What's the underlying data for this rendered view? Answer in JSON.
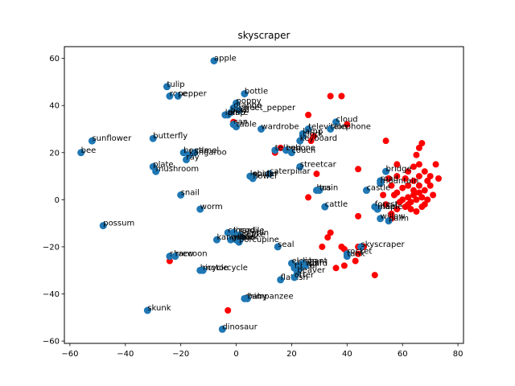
{
  "chart_data": {
    "type": "scatter",
    "title": "skyscraper",
    "xlabel": "",
    "ylabel": "",
    "xlim": [
      -62,
      82
    ],
    "ylim": [
      -61,
      65
    ],
    "xticks": [
      -60,
      -40,
      -20,
      0,
      20,
      40,
      60,
      80
    ],
    "yticks": [
      -60,
      -40,
      -20,
      0,
      20,
      40,
      60
    ],
    "grid": false,
    "colors": {
      "labeled": "#1f77b4",
      "unlabeled": "#ff0000"
    },
    "labeled_points": [
      {
        "label": "apple",
        "x": -8,
        "y": 59
      },
      {
        "label": "tulip",
        "x": -25,
        "y": 48
      },
      {
        "label": "rose",
        "x": -24,
        "y": 44
      },
      {
        "label": "pepper",
        "x": -21,
        "y": 44
      },
      {
        "label": "bottle",
        "x": 3,
        "y": 45
      },
      {
        "label": "poppy",
        "x": 0,
        "y": 41
      },
      {
        "label": "orange",
        "x": -1,
        "y": 39
      },
      {
        "label": "sweet_pepper",
        "x": 1,
        "y": 38
      },
      {
        "label": "bowl",
        "x": -2,
        "y": 37
      },
      {
        "label": "plate",
        "x": -3,
        "y": 36
      },
      {
        "label": "lamp",
        "x": -4,
        "y": 36
      },
      {
        "label": "can",
        "x": -1,
        "y": 32
      },
      {
        "label": "table",
        "x": 0,
        "y": 31
      },
      {
        "label": "wardrobe",
        "x": 9,
        "y": 30
      },
      {
        "label": "cloud",
        "x": 36,
        "y": 33
      },
      {
        "label": "television",
        "x": 26,
        "y": 30
      },
      {
        "label": "telephone",
        "x": 34,
        "y": 30
      },
      {
        "label": "lamp",
        "x": 24,
        "y": 28
      },
      {
        "label": "clock",
        "x": 24,
        "y": 27
      },
      {
        "label": "keyboard",
        "x": 23,
        "y": 25
      },
      {
        "label": "telephone",
        "x": 14,
        "y": 21
      },
      {
        "label": "bed",
        "x": 18,
        "y": 21
      },
      {
        "label": "couch",
        "x": 20,
        "y": 20
      },
      {
        "label": "sunflower",
        "x": -52,
        "y": 25
      },
      {
        "label": "butterfly",
        "x": -30,
        "y": 26
      },
      {
        "label": "bee",
        "x": -56,
        "y": 20
      },
      {
        "label": "beetle",
        "x": -19,
        "y": 20
      },
      {
        "label": "camel",
        "x": -15,
        "y": 20
      },
      {
        "label": "kangaroo",
        "x": -17,
        "y": 19
      },
      {
        "label": "ray",
        "x": -18,
        "y": 17
      },
      {
        "label": "plate",
        "x": -30,
        "y": 14
      },
      {
        "label": "mushroom",
        "x": -29,
        "y": 12
      },
      {
        "label": "streetcar",
        "x": 23,
        "y": 14
      },
      {
        "label": "caterpillar",
        "x": 12,
        "y": 11
      },
      {
        "label": "spider",
        "x": 6,
        "y": 10
      },
      {
        "label": "lobster",
        "x": 5,
        "y": 10
      },
      {
        "label": "flower",
        "x": 6,
        "y": 9
      },
      {
        "label": "snail",
        "x": -20,
        "y": 2
      },
      {
        "label": "bus",
        "x": 29,
        "y": 4
      },
      {
        "label": "train",
        "x": 30,
        "y": 4
      },
      {
        "label": "cattle",
        "x": 32,
        "y": -3
      },
      {
        "label": "worm",
        "x": -13,
        "y": -4
      },
      {
        "label": "bridge",
        "x": 54,
        "y": 12
      },
      {
        "label": "road",
        "x": 52,
        "y": 8
      },
      {
        "label": "mountain",
        "x": 52,
        "y": 7
      },
      {
        "label": "castle",
        "x": 47,
        "y": 4
      },
      {
        "label": "forest",
        "x": 50,
        "y": -3
      },
      {
        "label": "plain",
        "x": 51,
        "y": -4
      },
      {
        "label": "maple",
        "x": 51,
        "y": -4
      },
      {
        "label": "willow",
        "x": 52,
        "y": -8
      },
      {
        "label": "palm",
        "x": 55,
        "y": -9
      },
      {
        "label": "possum",
        "x": -48,
        "y": -11
      },
      {
        "label": "crocodile",
        "x": -3,
        "y": -14
      },
      {
        "label": "lizard",
        "x": -1,
        "y": -14
      },
      {
        "label": "snake",
        "x": 2,
        "y": -16
      },
      {
        "label": "dolphin",
        "x": 1,
        "y": -15
      },
      {
        "label": "shark",
        "x": 0,
        "y": -17
      },
      {
        "label": "whale",
        "x": -2,
        "y": -17
      },
      {
        "label": "porcupine",
        "x": 1,
        "y": -18
      },
      {
        "label": "kangaroo",
        "x": -7,
        "y": -17
      },
      {
        "label": "seal",
        "x": 15,
        "y": -20
      },
      {
        "label": "skyscraper",
        "x": 45,
        "y": -20
      },
      {
        "label": "rocket",
        "x": 40,
        "y": -23
      },
      {
        "label": "tank",
        "x": 40,
        "y": -24
      },
      {
        "label": "shrew",
        "x": -24,
        "y": -24
      },
      {
        "label": "raccoon",
        "x": -22,
        "y": -24
      },
      {
        "label": "elephant",
        "x": 20,
        "y": -27
      },
      {
        "label": "leopard",
        "x": 22,
        "y": -28
      },
      {
        "label": "tiger",
        "x": 21,
        "y": -29
      },
      {
        "label": "lion",
        "x": 24,
        "y": -27
      },
      {
        "label": "bear",
        "x": 23,
        "y": -29
      },
      {
        "label": "wolf",
        "x": 25,
        "y": -28
      },
      {
        "label": "beaver",
        "x": 22,
        "y": -31
      },
      {
        "label": "flatfish",
        "x": 16,
        "y": -34
      },
      {
        "label": "otter",
        "x": 21,
        "y": -33
      },
      {
        "label": "bicycle",
        "x": -13,
        "y": -30
      },
      {
        "label": "motorcycle",
        "x": -12,
        "y": -30
      },
      {
        "label": "chimpanzee",
        "x": 3,
        "y": -42
      },
      {
        "label": "baby",
        "x": 4,
        "y": -42
      },
      {
        "label": "skunk",
        "x": -32,
        "y": -47
      },
      {
        "label": "dinosaur",
        "x": -5,
        "y": -55
      }
    ],
    "unlabeled_points": [
      [
        38,
        44
      ],
      [
        34,
        44
      ],
      [
        26,
        36
      ],
      [
        40,
        32
      ],
      [
        28,
        27
      ],
      [
        27,
        25
      ],
      [
        14,
        20
      ],
      [
        16,
        22
      ],
      [
        29,
        11
      ],
      [
        44,
        13
      ],
      [
        26,
        1
      ],
      [
        44,
        -7
      ],
      [
        -1,
        33
      ],
      [
        -24,
        -26
      ],
      [
        -3,
        -47
      ],
      [
        34,
        -14
      ],
      [
        33,
        -16
      ],
      [
        31,
        -20
      ],
      [
        38,
        -20
      ],
      [
        39,
        -21
      ],
      [
        44,
        -20
      ],
      [
        46,
        -20
      ],
      [
        44,
        -23
      ],
      [
        43,
        -26
      ],
      [
        39,
        -28
      ],
      [
        36,
        -29
      ],
      [
        50,
        -32
      ],
      [
        24,
        -28
      ],
      [
        54,
        25
      ],
      [
        58,
        15
      ],
      [
        62,
        12
      ],
      [
        64,
        14
      ],
      [
        66,
        15
      ],
      [
        67,
        24
      ],
      [
        66,
        22
      ],
      [
        65,
        19
      ],
      [
        68,
        12
      ],
      [
        72,
        15
      ],
      [
        73,
        9
      ],
      [
        69,
        8
      ],
      [
        70,
        6
      ],
      [
        68,
        4
      ],
      [
        66,
        3
      ],
      [
        64,
        2
      ],
      [
        62,
        1
      ],
      [
        60,
        0
      ],
      [
        58,
        3
      ],
      [
        56,
        6
      ],
      [
        55,
        9
      ],
      [
        57,
        2
      ],
      [
        59,
        -1
      ],
      [
        61,
        -3
      ],
      [
        63,
        -4
      ],
      [
        65,
        -5
      ],
      [
        67,
        -3
      ],
      [
        69,
        0
      ],
      [
        71,
        2
      ],
      [
        66,
        10
      ],
      [
        64,
        8
      ],
      [
        62,
        6
      ],
      [
        60,
        5
      ],
      [
        65,
        0
      ],
      [
        67,
        1
      ],
      [
        63,
        -1
      ],
      [
        58,
        -4
      ],
      [
        56,
        -6
      ],
      [
        53,
        2
      ],
      [
        54,
        -2
      ],
      [
        61,
        9
      ],
      [
        70,
        10
      ],
      [
        68,
        -2
      ],
      [
        66,
        6
      ],
      [
        64,
        4
      ],
      [
        62,
        -2
      ],
      [
        56,
        -8
      ],
      [
        58,
        10
      ]
    ]
  }
}
